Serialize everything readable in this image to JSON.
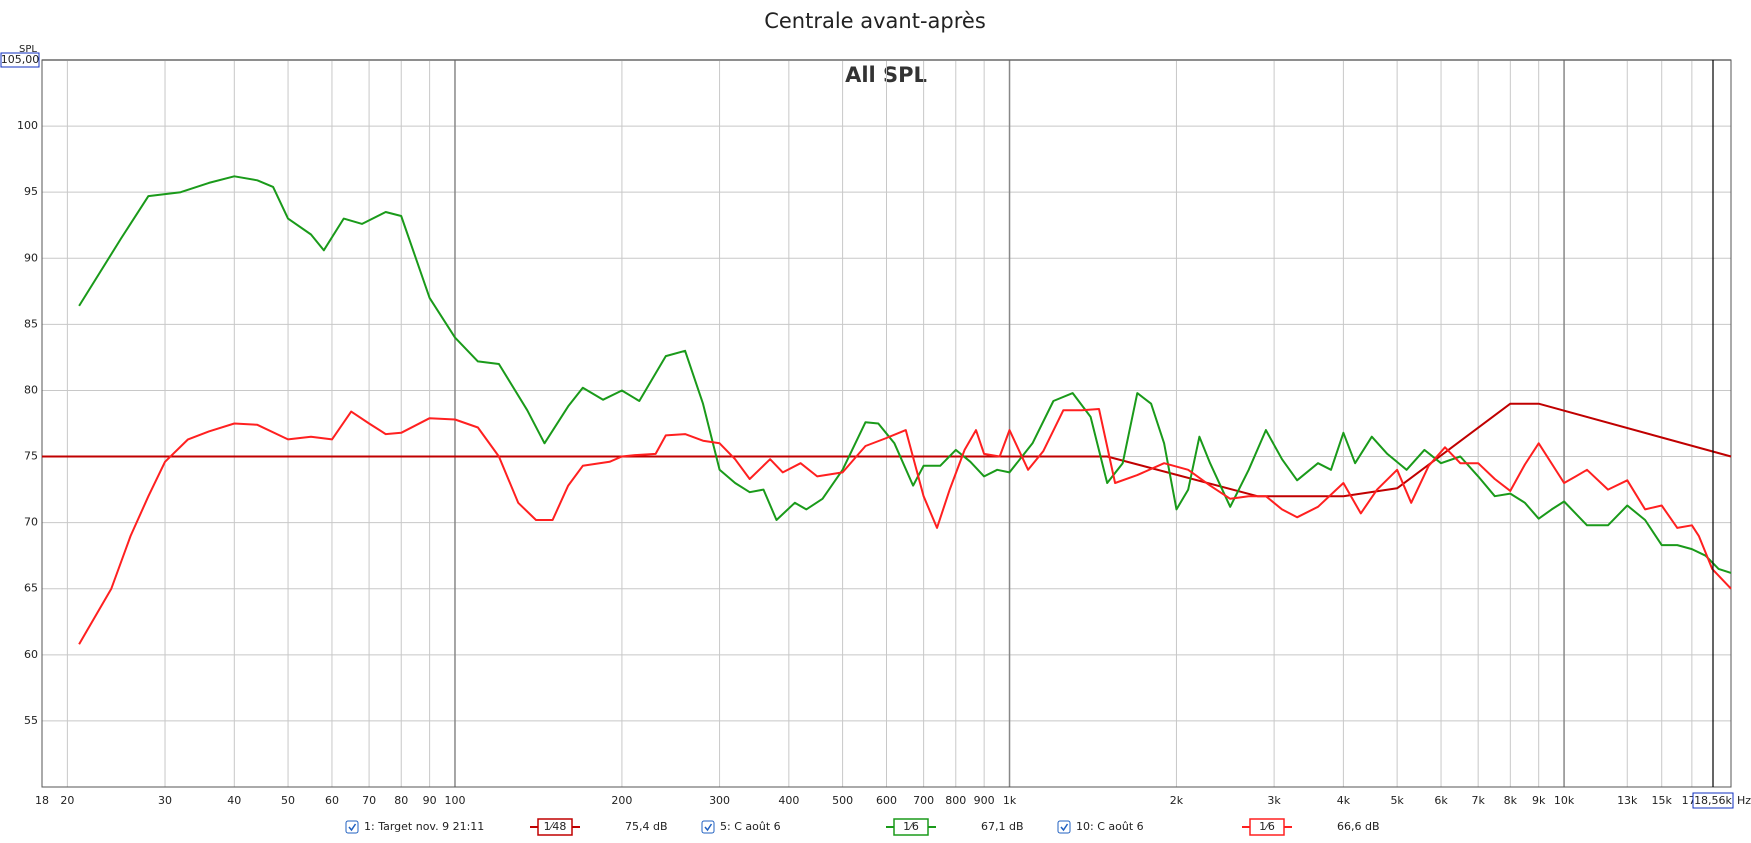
{
  "chart_data": {
    "type": "line",
    "title": "Centrale avant-après",
    "subtitle": "All SPL",
    "y_label": "SPL",
    "x_label": "Hz",
    "xscale": "log",
    "grid": true,
    "xlim": [
      18,
      20000
    ],
    "ylim": [
      50,
      105
    ],
    "yticks": [
      55,
      60,
      65,
      70,
      75,
      80,
      85,
      90,
      95,
      100,
      {
        "value": 105,
        "label": "105,00"
      }
    ],
    "xticks": [
      18,
      20,
      30,
      40,
      50,
      60,
      70,
      80,
      90,
      100,
      200,
      300,
      400,
      500,
      600,
      700,
      800,
      900,
      {
        "value": 1000,
        "label": "1k"
      },
      {
        "value": 2000,
        "label": "2k"
      },
      {
        "value": 3000,
        "label": "3k"
      },
      {
        "value": 4000,
        "label": "4k"
      },
      {
        "value": 5000,
        "label": "5k"
      },
      {
        "value": 6000,
        "label": "6k"
      },
      {
        "value": 7000,
        "label": "7k"
      },
      {
        "value": 8000,
        "label": "8k"
      },
      {
        "value": 9000,
        "label": "9k"
      },
      {
        "value": 10000,
        "label": "10k"
      },
      {
        "value": 13000,
        "label": "13k"
      },
      {
        "value": 15000,
        "label": "15k"
      },
      {
        "value": 17000,
        "label": "17k"
      }
    ],
    "cursor": {
      "value": 18560,
      "label": "18,56k"
    },
    "series": [
      {
        "name": "1: Target nov. 9 21:11",
        "smoothing": "1⁄48",
        "level": "75,4 dB",
        "color": "#c00000",
        "x": [
          18,
          1500,
          2800,
          4000,
          5000,
          8000,
          9000,
          20000
        ],
        "values": [
          75,
          75,
          72,
          72,
          72.6,
          79,
          79,
          75
        ]
      },
      {
        "name": "5: C août 6",
        "smoothing": "1⁄6",
        "level": "67,1 dB",
        "color": "#1a9a1a",
        "x": [
          21,
          25,
          28,
          32,
          36,
          40,
          44,
          47,
          50,
          55,
          58,
          63,
          68,
          75,
          80,
          90,
          100,
          110,
          120,
          135,
          145,
          160,
          170,
          185,
          200,
          215,
          240,
          260,
          280,
          300,
          320,
          340,
          360,
          380,
          410,
          430,
          460,
          500,
          550,
          580,
          620,
          670,
          700,
          750,
          800,
          850,
          900,
          950,
          1000,
          1100,
          1200,
          1300,
          1400,
          1500,
          1600,
          1700,
          1800,
          1900,
          2000,
          2100,
          2200,
          2300,
          2500,
          2700,
          2900,
          3100,
          3300,
          3600,
          3800,
          4000,
          4200,
          4500,
          4800,
          5200,
          5600,
          6000,
          6500,
          7000,
          7500,
          8000,
          8500,
          9000,
          9500,
          10000,
          11000,
          12000,
          13000,
          14000,
          15000,
          16000,
          17000,
          18000,
          19000,
          20000
        ],
        "values": [
          86.4,
          91.5,
          94.7,
          95,
          95.7,
          96.2,
          95.9,
          95.4,
          93,
          91.8,
          90.6,
          93,
          92.6,
          93.5,
          93.2,
          87,
          84,
          82.2,
          82,
          78.5,
          76,
          78.8,
          80.2,
          79.3,
          80,
          79.2,
          82.6,
          83,
          79,
          74,
          73,
          72.3,
          72.5,
          70.2,
          71.5,
          71,
          71.8,
          74,
          77.6,
          77.5,
          76,
          72.8,
          74.3,
          74.3,
          75.5,
          74.6,
          73.5,
          74,
          73.8,
          76,
          79.2,
          79.8,
          78,
          73,
          74.5,
          79.8,
          79,
          76,
          71,
          72.5,
          76.5,
          74.5,
          71.2,
          74,
          77,
          74.8,
          73.2,
          74.5,
          74,
          76.8,
          74.5,
          76.5,
          75.2,
          74,
          75.5,
          74.5,
          75,
          73.5,
          72,
          72.2,
          71.5,
          70.3,
          71,
          71.6,
          69.8,
          69.8,
          71.3,
          70.2,
          68.3,
          68.3,
          68,
          67.5,
          66.5,
          66.2
        ]
      },
      {
        "name": "10: C août 6",
        "smoothing": "1⁄6",
        "level": "66,6 dB",
        "color": "#ff2020",
        "x": [
          21,
          24,
          26,
          28,
          30,
          33,
          36,
          40,
          44,
          50,
          55,
          60,
          65,
          70,
          75,
          80,
          90,
          100,
          110,
          120,
          130,
          140,
          150,
          160,
          170,
          190,
          200,
          210,
          230,
          240,
          260,
          280,
          300,
          320,
          340,
          370,
          390,
          420,
          450,
          500,
          550,
          600,
          650,
          700,
          740,
          780,
          830,
          870,
          900,
          960,
          1000,
          1080,
          1150,
          1250,
          1350,
          1450,
          1550,
          1700,
          1900,
          2100,
          2300,
          2500,
          2700,
          2900,
          3100,
          3300,
          3600,
          4000,
          4300,
          4600,
          5000,
          5300,
          5700,
          6100,
          6500,
          7000,
          7500,
          8000,
          8500,
          9000,
          10000,
          10500,
          11000,
          12000,
          13000,
          14000,
          15000,
          16000,
          17000,
          17500,
          18500,
          20000
        ],
        "values": [
          60.8,
          65,
          69,
          72,
          74.6,
          76.3,
          76.9,
          77.5,
          77.4,
          76.3,
          76.5,
          76.3,
          78.4,
          77.5,
          76.7,
          76.8,
          77.9,
          77.8,
          77.2,
          75,
          71.5,
          70.2,
          70.2,
          72.8,
          74.3,
          74.6,
          75,
          75.1,
          75.2,
          76.6,
          76.7,
          76.2,
          76,
          74.8,
          73.3,
          74.8,
          73.8,
          74.5,
          73.5,
          73.8,
          75.8,
          76.4,
          77,
          72,
          69.6,
          72.5,
          75.5,
          77,
          75.2,
          75,
          77,
          74,
          75.4,
          78.5,
          78.5,
          78.6,
          73,
          73.6,
          74.5,
          74,
          72.8,
          71.8,
          72,
          72,
          71,
          70.4,
          71.2,
          73,
          70.7,
          72.5,
          74,
          71.5,
          74.3,
          75.7,
          74.5,
          74.5,
          73.3,
          72.4,
          74.4,
          76,
          73,
          73.5,
          74,
          72.5,
          73.2,
          71,
          71.3,
          69.6,
          69.8,
          69,
          66.5,
          65
        ]
      }
    ]
  }
}
